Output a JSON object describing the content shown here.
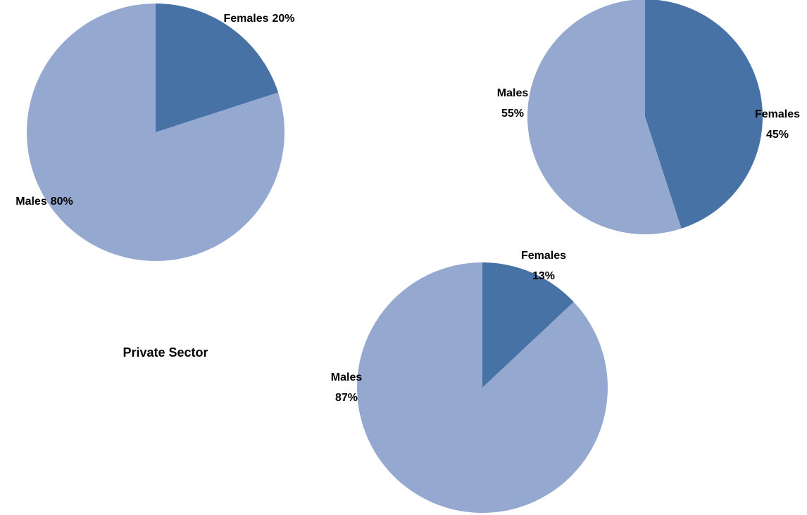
{
  "chart_data": [
    {
      "type": "pie",
      "categories": [
        "Females",
        "Males"
      ],
      "values": [
        20,
        80
      ],
      "value_labels": [
        "20%",
        "80%"
      ],
      "colors": [
        "#4672a6",
        "#95a9d0"
      ]
    },
    {
      "type": "pie",
      "categories": [
        "Females",
        "Males"
      ],
      "values": [
        45,
        55
      ],
      "value_labels": [
        "45%",
        "55%"
      ],
      "colors": [
        "#4672a6",
        "#95a9d0"
      ]
    },
    {
      "type": "pie",
      "title": "Private Sector",
      "categories": [
        "Females",
        "Males"
      ],
      "values": [
        13,
        87
      ],
      "value_labels": [
        "13%",
        "87%"
      ],
      "colors": [
        "#4672a6",
        "#95a9d0"
      ]
    }
  ]
}
